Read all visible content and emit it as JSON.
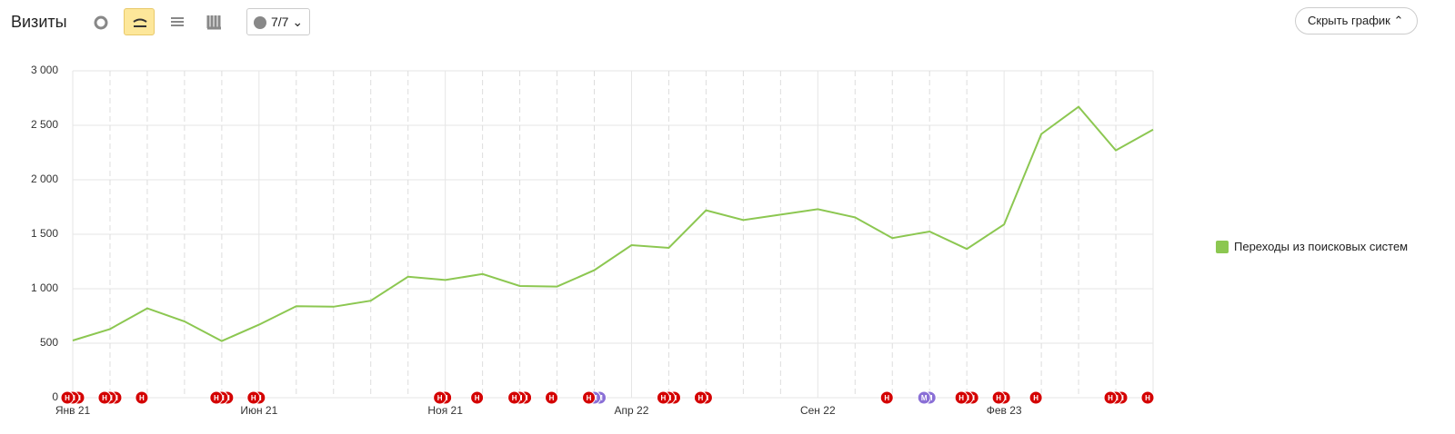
{
  "header": {
    "title": "Визиты",
    "notes_count": "7/7",
    "hide_button": "Скрыть график"
  },
  "chart_data": {
    "type": "line",
    "categories": [
      "Янв 21",
      null,
      null,
      null,
      null,
      "Июн 21",
      null,
      null,
      null,
      null,
      "Ноя 21",
      null,
      null,
      null,
      null,
      "Апр 22",
      null,
      null,
      null,
      null,
      "Сен 22",
      null,
      null,
      null,
      null,
      "Фев 23",
      null,
      null,
      null,
      null
    ],
    "series": [
      {
        "name": "Переходы из поисковых систем",
        "color": "#8cc751",
        "values": [
          525,
          630,
          820,
          700,
          520,
          670,
          840,
          835,
          890,
          1110,
          1080,
          1135,
          1025,
          1020,
          1170,
          1400,
          1375,
          1720,
          1630,
          1680,
          1730,
          1655,
          1465,
          1525,
          1365,
          1590,
          2420,
          2670,
          2270,
          2460
        ]
      }
    ],
    "ylim": [
      0,
      3000
    ],
    "yticks": [
      0,
      500,
      {
        "value": 1000,
        "label": "1 000"
      },
      {
        "value": 1500,
        "label": "1 500"
      },
      {
        "value": 2000,
        "label": "2 000"
      },
      {
        "value": 2500,
        "label": "2 500"
      },
      {
        "value": 3000,
        "label": "3 000"
      }
    ],
    "grid": true,
    "markers": [
      [
        {
          "label": "Н",
          "color": "#d40000"
        },
        {
          "label": "Н",
          "color": "#d40000"
        },
        {
          "label": "Н",
          "color": "#d40000"
        }
      ],
      [
        {
          "label": "Н",
          "color": "#d40000"
        },
        {
          "label": "Н",
          "color": "#d40000"
        },
        {
          "label": "Н",
          "color": "#d40000"
        }
      ],
      [
        {
          "label": "Н",
          "color": "#d40000"
        }
      ],
      null,
      [
        {
          "label": "Н",
          "color": "#d40000"
        },
        {
          "label": "Н",
          "color": "#d40000"
        },
        {
          "label": "Н",
          "color": "#d40000"
        }
      ],
      [
        {
          "label": "Н",
          "color": "#d40000"
        },
        {
          "label": "Н",
          "color": "#d40000"
        }
      ],
      null,
      null,
      null,
      null,
      [
        {
          "label": "Н",
          "color": "#d40000"
        },
        {
          "label": "Н",
          "color": "#d40000"
        }
      ],
      [
        {
          "label": "Н",
          "color": "#d40000"
        }
      ],
      [
        {
          "label": "Н",
          "color": "#d40000"
        },
        {
          "label": "Н",
          "color": "#d40000"
        },
        {
          "label": "Н",
          "color": "#d40000"
        }
      ],
      [
        {
          "label": "Н",
          "color": "#d40000"
        }
      ],
      [
        {
          "label": "Н",
          "color": "#d40000"
        },
        {
          "label": "М",
          "color": "#8a6fd6"
        },
        {
          "label": "М",
          "color": "#8a6fd6"
        }
      ],
      null,
      [
        {
          "label": "Н",
          "color": "#d40000"
        },
        {
          "label": "Н",
          "color": "#d40000"
        },
        {
          "label": "Н",
          "color": "#d40000"
        }
      ],
      [
        {
          "label": "Н",
          "color": "#d40000"
        },
        {
          "label": "Н",
          "color": "#d40000"
        }
      ],
      null,
      null,
      null,
      null,
      [
        {
          "label": "Н",
          "color": "#d40000"
        }
      ],
      [
        {
          "label": "М",
          "color": "#8a6fd6"
        },
        {
          "label": "М",
          "color": "#8a6fd6"
        }
      ],
      [
        {
          "label": "Н",
          "color": "#d40000"
        },
        {
          "label": "Н",
          "color": "#d40000"
        },
        {
          "label": "Н",
          "color": "#d40000"
        }
      ],
      [
        {
          "label": "Н",
          "color": "#d40000"
        },
        {
          "label": "Н",
          "color": "#d40000"
        }
      ],
      [
        {
          "label": "Н",
          "color": "#d40000"
        }
      ],
      null,
      [
        {
          "label": "Н",
          "color": "#d40000"
        },
        {
          "label": "Н",
          "color": "#d40000"
        },
        {
          "label": "Н",
          "color": "#d40000"
        }
      ],
      [
        {
          "label": "Н",
          "color": "#d40000"
        }
      ]
    ]
  }
}
